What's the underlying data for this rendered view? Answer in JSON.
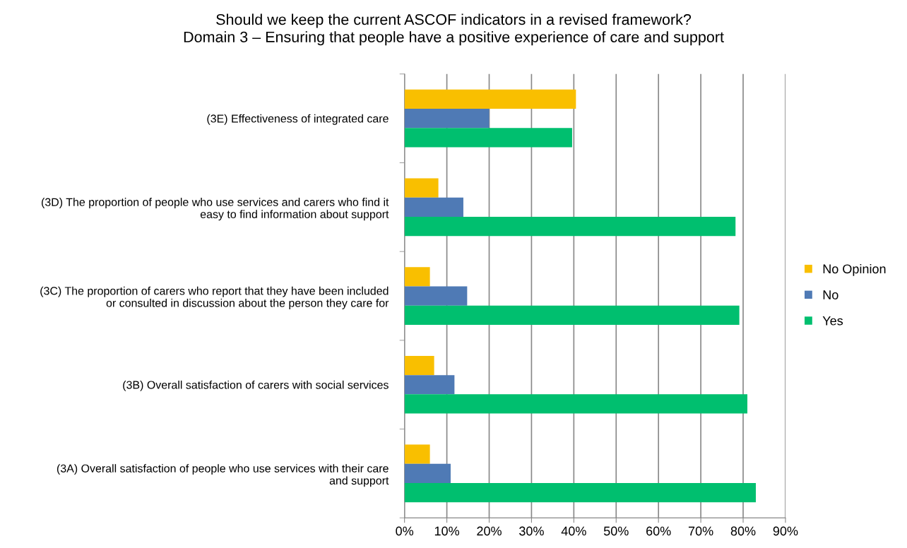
{
  "chart_data": {
    "type": "bar",
    "orientation": "horizontal",
    "title": "Should we keep the current ASCOF indicators in a revised framework?\nDomain 3 – Ensuring that people have a positive experience of care and support",
    "categories": [
      "(3E) Effectiveness of integrated care",
      "(3D) The proportion of people who use services and carers who find it\neasy to find information about support",
      "(3C) The proportion of carers who report that they have been included\nor consulted in discussion about the person they care for",
      "(3B) Overall satisfaction of carers with social services",
      "(3A) Overall satisfaction of people who use services with their care\nand support"
    ],
    "series": [
      {
        "name": "No Opinion",
        "color": "#f9bf00",
        "values": [
          40.5,
          8,
          6,
          7,
          6
        ]
      },
      {
        "name": "No",
        "color": "#4f7ab5",
        "values": [
          20,
          13.9,
          14.8,
          11.8,
          10.9
        ]
      },
      {
        "name": "Yes",
        "color": "#00bf6f",
        "values": [
          39.6,
          78.2,
          79.1,
          81,
          83
        ]
      }
    ],
    "xlim": [
      0,
      90
    ],
    "xticks": [
      {
        "value": 0,
        "label": "0%"
      },
      {
        "value": 10,
        "label": "10%"
      },
      {
        "value": 20,
        "label": "20%"
      },
      {
        "value": 30,
        "label": "30%"
      },
      {
        "value": 40,
        "label": "40%"
      },
      {
        "value": 50,
        "label": "50%"
      },
      {
        "value": 60,
        "label": "60%"
      },
      {
        "value": 70,
        "label": "70%"
      },
      {
        "value": 80,
        "label": "80%"
      },
      {
        "value": 90,
        "label": "90%"
      }
    ],
    "grid": "x",
    "legend": "right"
  }
}
